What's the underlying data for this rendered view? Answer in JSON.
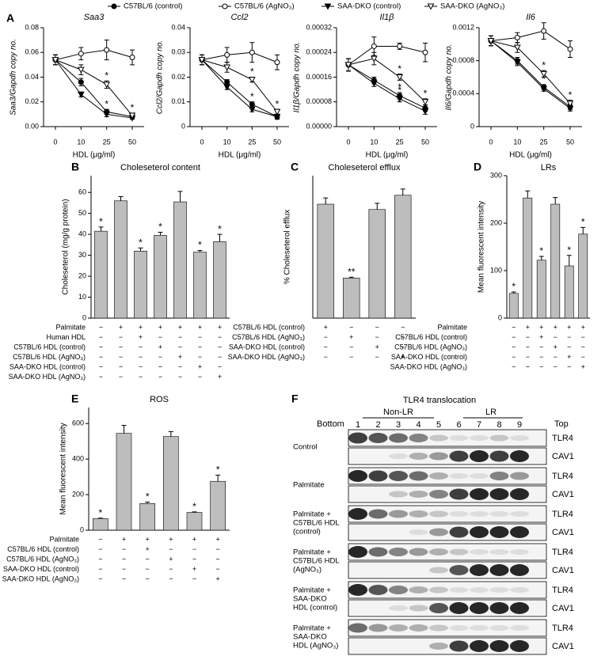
{
  "legend_source": "chart_data.0.series",
  "chart_data": [
    {
      "type": "line",
      "panel": "A",
      "title": "Saa3",
      "ylabel": "Saa3/Gapdh copy no.",
      "xlabel": "HDL (μg/ml)",
      "categories": [
        "0",
        "10",
        "25",
        "50"
      ],
      "ylim": [
        0,
        0.08
      ],
      "yticks": [
        {
          "value": 0,
          "label": "0.00"
        },
        {
          "value": 0.02,
          "label": "0.02"
        },
        {
          "value": 0.04,
          "label": "0.04"
        },
        {
          "value": 0.06,
          "label": "0.06"
        },
        {
          "value": 0.08,
          "label": "0.08"
        }
      ],
      "series": [
        {
          "name": "C57BL/6 (control)",
          "color": "#000000",
          "marker": "circle",
          "filled": true,
          "values": [
            0.054,
            0.036,
            0.012,
            0.008
          ],
          "errors": [
            0.004,
            0.003,
            0.002,
            0.001
          ],
          "marks": [
            null,
            null,
            "*",
            null
          ]
        },
        {
          "name": "C57BL/6 (AgNO₃)",
          "color": "#000000",
          "marker": "circle",
          "filled": false,
          "values": [
            0.054,
            0.059,
            0.062,
            0.056
          ],
          "errors": [
            0.004,
            0.005,
            0.008,
            0.006
          ],
          "marks": [
            null,
            null,
            null,
            null
          ]
        },
        {
          "name": "SAA-DKO (control)",
          "color": "#000000",
          "marker": "triangle",
          "filled": true,
          "values": [
            0.054,
            0.026,
            0.01,
            0.007
          ],
          "errors": [
            0.004,
            0.002,
            0.002,
            0.001
          ],
          "marks": [
            null,
            null,
            null,
            null
          ]
        },
        {
          "name": "SAA-DKO (AgNO₃)",
          "color": "#000000",
          "marker": "triangle",
          "filled": false,
          "values": [
            0.054,
            0.046,
            0.034,
            0.009
          ],
          "errors": [
            0.004,
            0.004,
            0.003,
            0.002
          ],
          "marks": [
            null,
            null,
            "*",
            "*"
          ]
        }
      ]
    },
    {
      "type": "line",
      "title": "Ccl2",
      "ylabel": "Ccl2/Gapdh copy no.",
      "xlabel": "HDL (μg/ml)",
      "categories": [
        "0",
        "10",
        "25",
        "50"
      ],
      "ylim": [
        0,
        0.04
      ],
      "yticks": [
        0,
        0.01,
        0.02,
        0.03,
        0.04
      ],
      "series": [
        {
          "color": "#000000",
          "marker": "circle",
          "filled": true,
          "values": [
            0.027,
            0.018,
            0.009,
            0.004
          ],
          "errors": [
            0.002,
            0.001,
            0.001,
            0.001
          ],
          "marks": [
            null,
            null,
            "*",
            null
          ]
        },
        {
          "color": "#000000",
          "marker": "circle",
          "filled": false,
          "values": [
            0.027,
            0.029,
            0.03,
            0.026
          ],
          "errors": [
            0.002,
            0.003,
            0.004,
            0.003
          ],
          "marks": [
            null,
            null,
            null,
            null
          ]
        },
        {
          "color": "#000000",
          "marker": "triangle",
          "filled": true,
          "values": [
            0.027,
            0.016,
            0.007,
            0.004
          ],
          "errors": [
            0.002,
            0.001,
            0.001,
            0.001
          ],
          "marks": [
            null,
            null,
            null,
            null
          ]
        },
        {
          "color": "#000000",
          "marker": "triangle",
          "filled": false,
          "values": [
            0.027,
            0.024,
            0.019,
            0.006
          ],
          "errors": [
            0.002,
            0.002,
            0.001,
            0.001
          ],
          "marks": [
            null,
            null,
            "*",
            "*"
          ]
        }
      ]
    },
    {
      "type": "line",
      "title": "Il1β",
      "ylabel": "Il1β/Gapdh copy no.",
      "xlabel": "HDL (μg/ml)",
      "categories": [
        "0",
        "10",
        "25",
        "50"
      ],
      "ylim": [
        0,
        0.00032
      ],
      "yticks": [
        {
          "value": 0,
          "label": "0.00000"
        },
        {
          "value": 8e-05,
          "label": "0.00008"
        },
        {
          "value": 0.00016,
          "label": "0.00016"
        },
        {
          "value": 0.00024,
          "label": "0.00024"
        },
        {
          "value": 0.00032,
          "label": "0.00032"
        }
      ],
      "series": [
        {
          "color": "#000000",
          "marker": "circle",
          "filled": true,
          "values": [
            0.0002,
            0.00015,
            0.0001,
            6e-05
          ],
          "errors": [
            2e-05,
            1e-05,
            1e-05,
            1e-05
          ],
          "marks": [
            null,
            null,
            "*",
            null
          ]
        },
        {
          "color": "#000000",
          "marker": "circle",
          "filled": false,
          "values": [
            0.0002,
            0.00026,
            0.00026,
            0.00024
          ],
          "errors": [
            2e-05,
            3e-05,
            1e-05,
            3e-05
          ],
          "marks": [
            null,
            null,
            null,
            null
          ]
        },
        {
          "color": "#000000",
          "marker": "triangle",
          "filled": true,
          "values": [
            0.0002,
            0.00014,
            9e-05,
            5e-05
          ],
          "errors": [
            2e-05,
            1e-05,
            1e-05,
            1e-05
          ],
          "marks": [
            null,
            null,
            "*",
            null
          ]
        },
        {
          "color": "#000000",
          "marker": "triangle",
          "filled": false,
          "values": [
            0.0002,
            0.00022,
            0.00016,
            8e-05
          ],
          "errors": [
            2e-05,
            2e-05,
            1e-05,
            1e-05
          ],
          "marks": [
            null,
            null,
            "*",
            "*"
          ]
        }
      ]
    },
    {
      "type": "line",
      "title": "Il6",
      "ylabel": "Il6/Gapdh copy no.",
      "xlabel": "HDL (μg/ml)",
      "categories": [
        "0",
        "10",
        "25",
        "50"
      ],
      "ylim": [
        0,
        0.0012
      ],
      "yticks": [
        0,
        0.0004,
        0.0008,
        0.0012
      ],
      "series": [
        {
          "color": "#000000",
          "marker": "circle",
          "filled": true,
          "values": [
            0.00104,
            0.0008,
            0.00048,
            0.00024
          ],
          "errors": [
            6e-05,
            4e-05,
            3e-05,
            3e-05
          ],
          "marks": [
            null,
            null,
            "*",
            null
          ]
        },
        {
          "color": "#000000",
          "marker": "circle",
          "filled": false,
          "values": [
            0.00104,
            0.00108,
            0.00116,
            0.00094
          ],
          "errors": [
            6e-05,
            6e-05,
            0.0001,
            0.0001
          ],
          "marks": [
            null,
            null,
            null,
            null
          ]
        },
        {
          "color": "#000000",
          "marker": "triangle",
          "filled": true,
          "values": [
            0.00104,
            0.00078,
            0.00046,
            0.00022
          ],
          "errors": [
            6e-05,
            4e-05,
            3e-05,
            3e-05
          ],
          "marks": [
            null,
            null,
            null,
            null
          ]
        },
        {
          "color": "#000000",
          "marker": "triangle",
          "filled": false,
          "values": [
            0.00104,
            0.00096,
            0.00064,
            0.00028
          ],
          "errors": [
            6e-05,
            6e-05,
            4e-05,
            4e-05
          ],
          "marks": [
            null,
            null,
            "*",
            "*"
          ]
        }
      ]
    },
    {
      "type": "bar",
      "panel": "B",
      "title": "Choleseterol content",
      "ylabel": "Choleseterol (mg/g protein)",
      "color": "#bdbdbd",
      "ylim": [
        0,
        68
      ],
      "yticks": [
        0,
        10,
        20,
        30,
        40,
        50,
        60
      ],
      "values": [
        41.5,
        56,
        32,
        39.5,
        55.5,
        31.5,
        36.5
      ],
      "errors": [
        2,
        2,
        1.5,
        1.5,
        5,
        0.8,
        3.5
      ],
      "marks": [
        "*",
        null,
        "*",
        "*",
        null,
        "*",
        "*"
      ],
      "conditions": [
        {
          "label": "Palmitate",
          "signs": [
            "−",
            "+",
            "+",
            "+",
            "+",
            "+",
            "+"
          ]
        },
        {
          "label": "Human HDL",
          "signs": [
            "−",
            "−",
            "+",
            "−",
            "−",
            "−",
            "−"
          ]
        },
        {
          "label": "C57BL/6 HDL (control)",
          "signs": [
            "−",
            "−",
            "−",
            "+",
            "−",
            "−",
            "−"
          ]
        },
        {
          "label": "C57BL/6 HDL (AgNO₃)",
          "signs": [
            "−",
            "−",
            "−",
            "−",
            "+",
            "−",
            "−"
          ]
        },
        {
          "label": "SAA-DKO HDL (control)",
          "signs": [
            "−",
            "−",
            "−",
            "−",
            "−",
            "+",
            "−"
          ]
        },
        {
          "label": "SAA-DKO HDL (AgNO₃)",
          "signs": [
            "−",
            "−",
            "−",
            "−",
            "−",
            "−",
            "+"
          ]
        }
      ]
    },
    {
      "type": "bar",
      "panel": "C",
      "title": "Choleseterol efflux",
      "ylabel": "% Choleseterol efflux",
      "color": "#bdbdbd",
      "ylim": [
        0,
        8
      ],
      "values": [
        6.4,
        2.25,
        6.1,
        6.9
      ],
      "errors": [
        0.35,
        0.05,
        0.35,
        0.35
      ],
      "marks": [
        null,
        "**",
        null,
        null
      ],
      "conditions": [
        {
          "label": "C57BL/6 HDL (control)",
          "signs": [
            "+",
            "−",
            "−",
            "−"
          ]
        },
        {
          "label": "C57BL/6 HDL (AgNO₃)",
          "signs": [
            "−",
            "+",
            "−",
            "−"
          ]
        },
        {
          "label": "SAA-DKO HDL (control)",
          "signs": [
            "−",
            "−",
            "+",
            "−"
          ]
        },
        {
          "label": "SAA-DKO HDL (AgNO₃)",
          "signs": [
            "−",
            "−",
            "−",
            "+"
          ]
        }
      ]
    },
    {
      "type": "bar",
      "panel": "D",
      "title": "LRs",
      "ylabel": "Mean fluorescent intensity",
      "color": "#bdbdbd",
      "ylim": [
        0,
        300
      ],
      "yticks": [
        0,
        100,
        200,
        300
      ],
      "values": [
        52,
        253,
        122,
        240,
        110,
        177
      ],
      "errors": [
        3,
        15,
        8,
        14,
        22,
        14
      ],
      "marks": [
        "*",
        null,
        "*",
        null,
        "*",
        "*"
      ],
      "conditions": [
        {
          "label": "Palmitate",
          "signs": [
            "−",
            "+",
            "+",
            "+",
            "+",
            "+"
          ]
        },
        {
          "label": "C57BL/6 HDL (control)",
          "signs": [
            "−",
            "−",
            "+",
            "−",
            "−",
            "−"
          ]
        },
        {
          "label": "C57BL/6 HDL (AgNO₃)",
          "signs": [
            "−",
            "−",
            "−",
            "+",
            "−",
            "−"
          ]
        },
        {
          "label": "SAA-DKO HDL (control)",
          "signs": [
            "−",
            "−",
            "−",
            "−",
            "+",
            "−"
          ]
        },
        {
          "label": "SAA-DKO HDL (AgNO₃)",
          "signs": [
            "−",
            "−",
            "−",
            "−",
            "−",
            "+"
          ]
        }
      ]
    },
    {
      "type": "bar",
      "panel": "E",
      "title": "ROS",
      "ylabel": "Mean fluorescent intensity",
      "color": "#bdbdbd",
      "ylim": [
        0,
        690
      ],
      "yticks": [
        0,
        200,
        400,
        600
      ],
      "values": [
        65,
        545,
        150,
        527,
        100,
        275
      ],
      "errors": [
        3,
        45,
        8,
        28,
        3,
        35
      ],
      "marks": [
        "*",
        null,
        "*",
        null,
        "*",
        "*"
      ],
      "conditions": [
        {
          "label": "Palmitate",
          "signs": [
            "−",
            "+",
            "+",
            "+",
            "+",
            "+"
          ]
        },
        {
          "label": "C57BL/6 HDL (control)",
          "signs": [
            "−",
            "−",
            "+",
            "−",
            "−",
            "−"
          ]
        },
        {
          "label": "C57BL/6 HDL (AgNO₃)",
          "signs": [
            "−",
            "−",
            "−",
            "+",
            "−",
            "−"
          ]
        },
        {
          "label": "SAA-DKO HDL (control)",
          "signs": [
            "−",
            "−",
            "−",
            "−",
            "+",
            "−"
          ]
        },
        {
          "label": "SAA-DKO HDL (AgNO₃)",
          "signs": [
            "−",
            "−",
            "−",
            "−",
            "−",
            "+"
          ]
        }
      ]
    }
  ],
  "blot": {
    "panel": "F",
    "title": "TLR4 translocation",
    "bottom": "Bottom",
    "top": "Top",
    "non_lr": "Non-LR",
    "lr": "LR",
    "lanes": [
      "1",
      "2",
      "3",
      "4",
      "5",
      "6",
      "7",
      "8",
      "9"
    ],
    "bands": [
      "TLR4",
      "CAV1"
    ],
    "groups": [
      [
        "Control"
      ],
      [
        "Palmitate"
      ],
      [
        "Palmitate +",
        "C57BL/6 HDL",
        "(control)"
      ],
      [
        "Palmitate +",
        "C57BL/6 HDL",
        "(AgNO₃)"
      ],
      [
        "Palmitate +",
        "SAA-DKO",
        "HDL (control)"
      ],
      [
        "Palmitate +",
        "SAA-DKO",
        "HDL (AgNO₃)"
      ]
    ]
  }
}
